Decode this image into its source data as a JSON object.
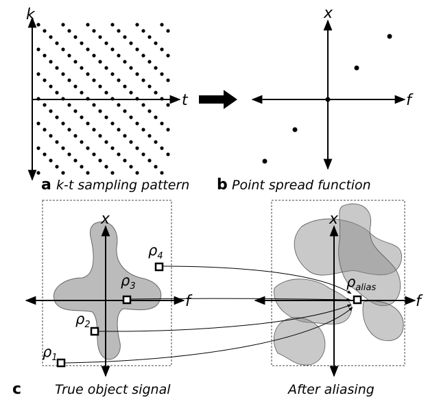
{
  "panel_a": {
    "label": "a",
    "caption": "k-t sampling pattern",
    "y_axis": "k",
    "x_axis": "t"
  },
  "panel_b": {
    "label": "b",
    "caption": "Point spread function",
    "y_axis": "x",
    "x_axis": "f"
  },
  "panel_c": {
    "label": "c",
    "left": {
      "caption": "True object signal",
      "y_axis": "x",
      "x_axis": "f",
      "points": [
        {
          "symbol": "ρ",
          "sub": "1"
        },
        {
          "symbol": "ρ",
          "sub": "2"
        },
        {
          "symbol": "ρ",
          "sub": "3"
        },
        {
          "symbol": "ρ",
          "sub": "4"
        }
      ]
    },
    "right": {
      "caption": "After aliasing",
      "y_axis": "x",
      "x_axis": "f",
      "point": {
        "symbol": "ρ",
        "sub": "alias"
      }
    }
  }
}
